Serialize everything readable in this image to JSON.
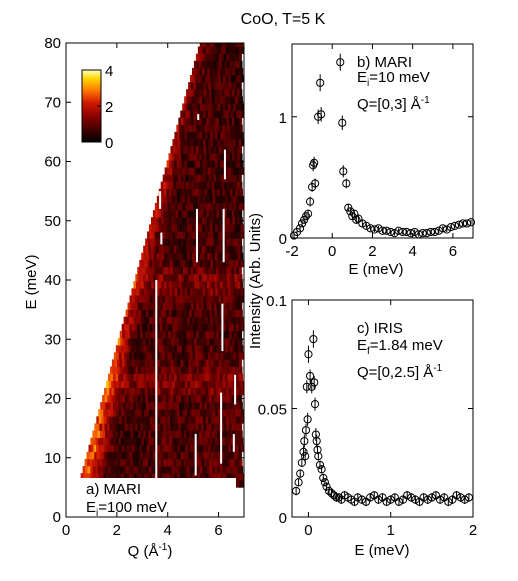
{
  "title": "CoO, T=5 K",
  "colors": {
    "colormap_stops": [
      "#000000",
      "#3a0000",
      "#8a0000",
      "#d21a00",
      "#ff7a00",
      "#ffd800",
      "#ffffc0"
    ],
    "marker": "#000000",
    "guide_lines": "#ffffff"
  },
  "chart_data": [
    {
      "id": "a",
      "type": "heatmap",
      "annotation_line1": "a) MARI",
      "annotation_line2_main": "E",
      "annotation_line2_sub": "i",
      "annotation_line2_rest": "=100 meV",
      "xlabel": "Q (Å",
      "xlabel_sup": "-1",
      "xlabel_close": ")",
      "ylabel": "E (meV)",
      "xlim": [
        0,
        7
      ],
      "ylim": [
        0,
        80
      ],
      "xticks": [
        0,
        2,
        4,
        6
      ],
      "yticks": [
        0,
        10,
        20,
        30,
        40,
        50,
        60,
        70,
        80
      ],
      "colorbar": {
        "range": [
          0,
          4
        ],
        "ticks": [
          0,
          2,
          4
        ]
      },
      "coverage": {
        "q_min_at_e_min": 0.5,
        "e_min": 5,
        "q_min_at_e_max": 5.3,
        "e_max": 80,
        "q_max": 6.9
      },
      "ridge_q_at_e": [
        [
          0.8,
          5
        ],
        [
          1.6,
          20
        ],
        [
          2.6,
          40
        ],
        [
          3.8,
          60
        ],
        [
          4.9,
          80
        ]
      ],
      "band_energies": [
        22,
        39
      ],
      "guide_segments": [
        {
          "q": 3.55,
          "e": [
            6,
            40
          ]
        },
        {
          "q": 3.7,
          "e": [
            60,
            62
          ]
        },
        {
          "q": 3.7,
          "e": [
            52,
            55
          ]
        },
        {
          "q": 3.75,
          "e": [
            46,
            48
          ]
        },
        {
          "q": 5.1,
          "e": [
            7,
            14
          ]
        },
        {
          "q": 5.15,
          "e": [
            43,
            52
          ]
        },
        {
          "q": 5.2,
          "e": [
            67,
            68
          ]
        },
        {
          "q": 6.1,
          "e": [
            9,
            21
          ]
        },
        {
          "q": 6.15,
          "e": [
            28,
            36
          ]
        },
        {
          "q": 6.2,
          "e": [
            43,
            52
          ]
        },
        {
          "q": 6.25,
          "e": [
            57,
            62
          ]
        },
        {
          "q": 6.6,
          "e": [
            11,
            14
          ]
        },
        {
          "q": 6.65,
          "e": [
            19,
            24
          ]
        }
      ]
    },
    {
      "id": "b",
      "type": "scatter",
      "annotation_line1": "b) MARI",
      "annotation_line2_main": "E",
      "annotation_line2_sub": "i",
      "annotation_line2_rest": "=10 meV",
      "annotation_line3": "Q=[0,3] Å",
      "annotation_line3_sup": "-1",
      "xlabel": "E (meV)",
      "xlim": [
        -2,
        7
      ],
      "ylim": [
        0,
        1.6
      ],
      "xticks": [
        -2,
        0,
        2,
        4,
        6
      ],
      "yticks": [
        0,
        1
      ],
      "x": [
        -1.9,
        -1.75,
        -1.6,
        -1.5,
        -1.4,
        -1.3,
        -1.2,
        -1.1,
        -1.0,
        -0.95,
        -0.9,
        -0.85,
        -0.7,
        -0.6,
        -0.55,
        0.4,
        0.5,
        0.55,
        0.7,
        0.8,
        0.9,
        1.0,
        1.1,
        1.2,
        1.3,
        1.5,
        1.7,
        1.9,
        2.1,
        2.3,
        2.5,
        2.7,
        2.9,
        3.1,
        3.3,
        3.5,
        3.7,
        3.9,
        4.1,
        4.3,
        4.5,
        4.7,
        4.9,
        5.1,
        5.3,
        5.5,
        5.7,
        5.9,
        6.1,
        6.3,
        6.5,
        6.7,
        6.9
      ],
      "y": [
        0.02,
        0.05,
        0.08,
        0.12,
        0.15,
        0.18,
        0.2,
        0.3,
        0.42,
        0.6,
        0.62,
        0.45,
        1.0,
        1.28,
        1.02,
        1.45,
        0.95,
        0.55,
        0.45,
        0.25,
        0.22,
        0.18,
        0.2,
        0.15,
        0.16,
        0.12,
        0.1,
        0.08,
        0.07,
        0.08,
        0.06,
        0.06,
        0.05,
        0.04,
        0.06,
        0.05,
        0.05,
        0.04,
        0.05,
        0.03,
        0.04,
        0.04,
        0.05,
        0.05,
        0.06,
        0.08,
        0.07,
        0.09,
        0.1,
        0.11,
        0.12,
        0.12,
        0.13
      ],
      "err": [
        0.02,
        0.02,
        0.02,
        0.03,
        0.03,
        0.03,
        0.03,
        0.04,
        0.04,
        0.05,
        0.05,
        0.04,
        0.06,
        0.07,
        0.06,
        0.07,
        0.06,
        0.05,
        0.04,
        0.03,
        0.03,
        0.03,
        0.03,
        0.03,
        0.03,
        0.03,
        0.02,
        0.02,
        0.02,
        0.02,
        0.02,
        0.02,
        0.02,
        0.02,
        0.02,
        0.02,
        0.02,
        0.02,
        0.02,
        0.02,
        0.02,
        0.02,
        0.02,
        0.02,
        0.02,
        0.02,
        0.02,
        0.02,
        0.02,
        0.02,
        0.02,
        0.02,
        0.02
      ]
    },
    {
      "id": "c",
      "type": "scatter",
      "annotation_line1": "c) IRIS",
      "annotation_line2_main": "E",
      "annotation_line2_sub": "f",
      "annotation_line2_rest": "=1.84 meV",
      "annotation_line3": "Q=[0,2.5] Å",
      "annotation_line3_sup": "-1",
      "xlabel": "E (meV)",
      "xlim": [
        -0.2,
        2
      ],
      "ylim": [
        0,
        0.1
      ],
      "xticks": [
        0,
        1,
        2
      ],
      "yticks": [
        0,
        0.05,
        0.1
      ],
      "x": [
        -0.15,
        -0.12,
        -0.1,
        -0.08,
        -0.06,
        -0.05,
        -0.04,
        -0.03,
        -0.02,
        -0.01,
        0.0,
        0.02,
        0.04,
        0.06,
        0.07,
        0.08,
        0.09,
        0.1,
        0.11,
        0.12,
        0.14,
        0.16,
        0.18,
        0.2,
        0.22,
        0.25,
        0.28,
        0.31,
        0.34,
        0.37,
        0.4,
        0.44,
        0.48,
        0.52,
        0.56,
        0.6,
        0.65,
        0.7,
        0.75,
        0.8,
        0.85,
        0.9,
        0.95,
        1.0,
        1.05,
        1.1,
        1.15,
        1.2,
        1.25,
        1.3,
        1.35,
        1.4,
        1.45,
        1.5,
        1.55,
        1.6,
        1.65,
        1.7,
        1.75,
        1.8,
        1.85,
        1.9,
        1.95
      ],
      "y": [
        0.012,
        0.016,
        0.02,
        0.025,
        0.03,
        0.035,
        0.028,
        0.04,
        0.06,
        0.045,
        0.075,
        0.065,
        0.06,
        0.082,
        0.062,
        0.052,
        0.038,
        0.035,
        0.031,
        0.028,
        0.024,
        0.022,
        0.018,
        0.016,
        0.014,
        0.012,
        0.011,
        0.01,
        0.009,
        0.009,
        0.008,
        0.01,
        0.009,
        0.008,
        0.007,
        0.009,
        0.008,
        0.007,
        0.009,
        0.01,
        0.008,
        0.009,
        0.007,
        0.008,
        0.009,
        0.007,
        0.008,
        0.01,
        0.009,
        0.008,
        0.007,
        0.009,
        0.008,
        0.009,
        0.01,
        0.008,
        0.009,
        0.007,
        0.008,
        0.01,
        0.009,
        0.008,
        0.009
      ],
      "err": [
        0.002,
        0.002,
        0.002,
        0.002,
        0.003,
        0.003,
        0.003,
        0.003,
        0.003,
        0.003,
        0.004,
        0.003,
        0.003,
        0.004,
        0.003,
        0.003,
        0.003,
        0.003,
        0.002,
        0.002,
        0.002,
        0.002,
        0.002,
        0.002,
        0.002,
        0.002,
        0.002,
        0.002,
        0.002,
        0.002,
        0.002,
        0.002,
        0.002,
        0.002,
        0.002,
        0.002,
        0.002,
        0.002,
        0.002,
        0.002,
        0.002,
        0.002,
        0.002,
        0.002,
        0.002,
        0.002,
        0.002,
        0.002,
        0.002,
        0.002,
        0.002,
        0.002,
        0.002,
        0.002,
        0.002,
        0.002,
        0.002,
        0.002,
        0.002,
        0.002,
        0.002,
        0.002,
        0.002
      ]
    }
  ],
  "shared_ylabel": "Intensity (Arb. Units)"
}
